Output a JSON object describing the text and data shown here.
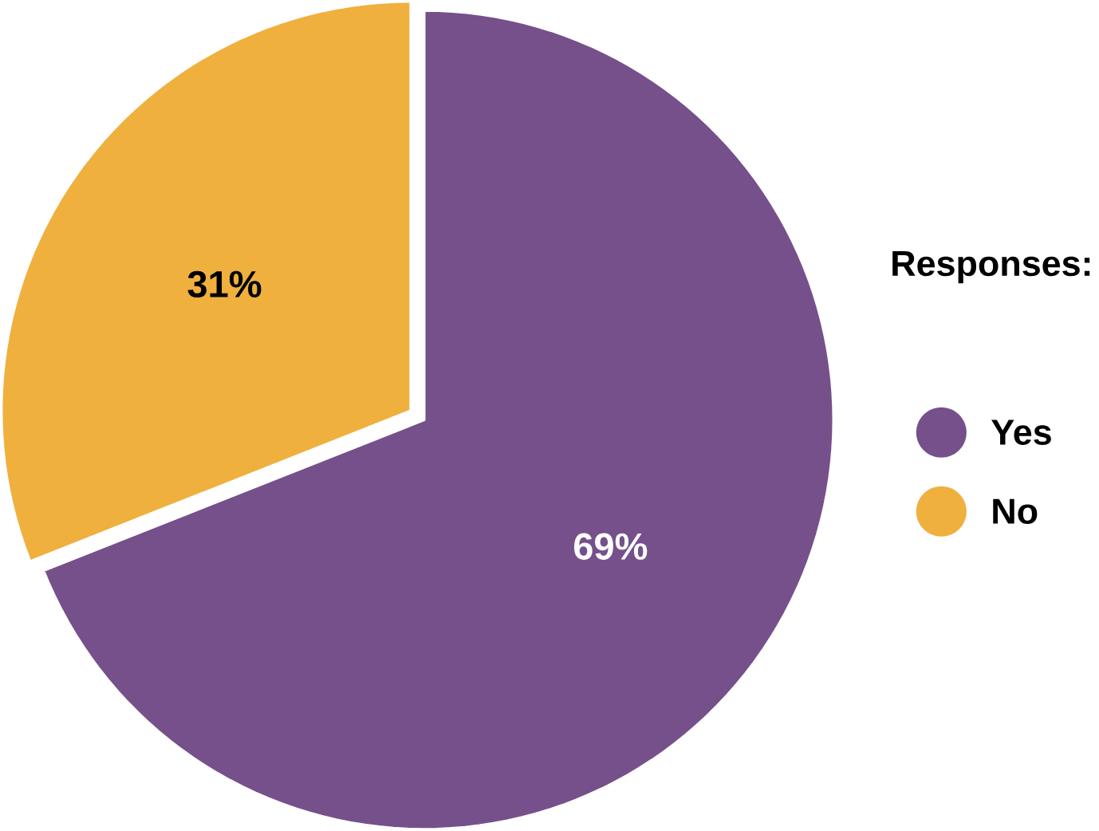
{
  "chart_data": {
    "type": "pie",
    "legend_title": "Responses:",
    "categories": [
      "Yes",
      "No"
    ],
    "values": [
      69,
      31
    ],
    "colors": [
      "#76508a",
      "#efb03e"
    ],
    "value_labels": [
      "69%",
      "31%"
    ],
    "legend": "right"
  }
}
